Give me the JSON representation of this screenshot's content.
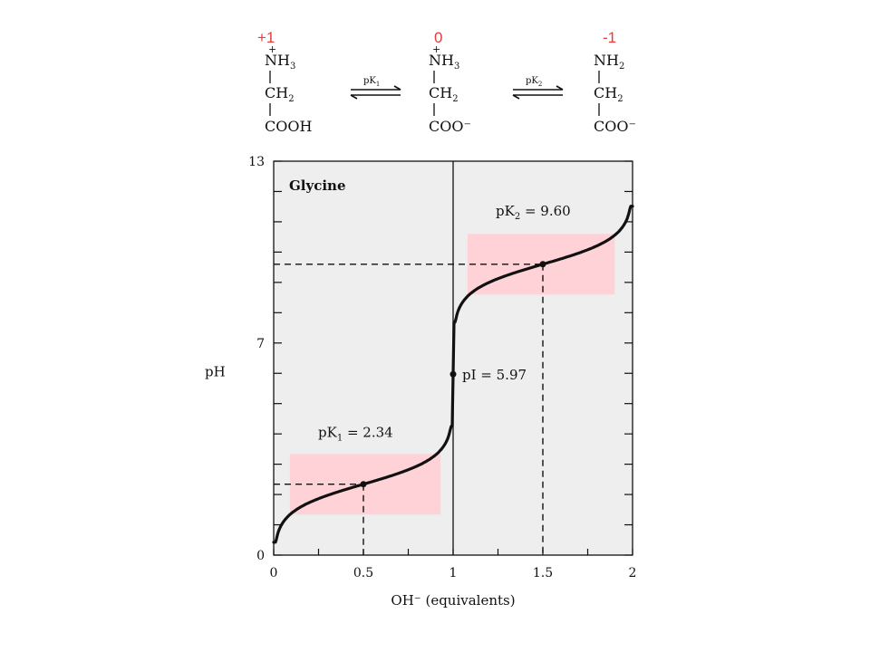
{
  "structures": [
    {
      "charge": "+1",
      "plus": "+",
      "top": {
        "main": "NH",
        "sub": "3"
      },
      "middle": {
        "main": "CH",
        "sub": "2"
      },
      "bottom": "COOH"
    },
    {
      "charge": "0",
      "plus": "+",
      "top": {
        "main": "NH",
        "sub": "3"
      },
      "middle": {
        "main": "CH",
        "sub": "2"
      },
      "bottom": "COO⁻"
    },
    {
      "charge": "-1",
      "plus": "",
      "top": {
        "main": "NH",
        "sub": "2"
      },
      "middle": {
        "main": "CH",
        "sub": "2"
      },
      "bottom": "COO⁻"
    }
  ],
  "equilibria": [
    {
      "main": "pK",
      "sub": "1"
    },
    {
      "main": "pK",
      "sub": "2"
    }
  ],
  "colors": {
    "charge": "#e83c3c",
    "plot_background": "#eeeeee",
    "buffer_region": "#ffd2d8",
    "curve": "#111111"
  },
  "chart_data": {
    "type": "line",
    "title": "Glycine",
    "xlabel": "OH⁻ (equivalents)",
    "ylabel": "pH",
    "xlim": [
      0,
      2
    ],
    "ylim": [
      0,
      13
    ],
    "x_ticks": [
      "0",
      "0.5",
      "1",
      "1.5",
      "2"
    ],
    "y_ticks": [
      "0",
      "7",
      "13"
    ],
    "pK1": 2.34,
    "pK2": 9.6,
    "pI": 5.97,
    "annotations": [
      {
        "main": "pK",
        "sub": "1",
        "text": " = 2.34",
        "x": 0.5,
        "y": 2.34
      },
      {
        "main": "pK",
        "sub": "2",
        "text": " = 9.60",
        "x": 1.5,
        "y": 9.6
      },
      {
        "text": "pI = 5.97",
        "x": 1.0,
        "y": 5.97
      }
    ],
    "buffer_regions": [
      {
        "x": [
          0.09,
          0.93
        ],
        "y": [
          1.34,
          3.34
        ]
      },
      {
        "x": [
          1.08,
          1.9
        ],
        "y": [
          8.6,
          10.6
        ]
      }
    ]
  }
}
